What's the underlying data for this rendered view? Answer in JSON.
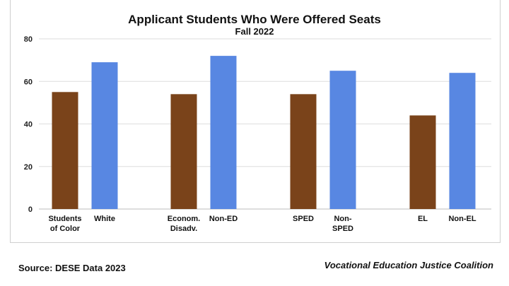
{
  "chart_data": {
    "type": "bar",
    "title": "Applicant Students Who Were Offered Seats",
    "subtitle": "Fall 2022",
    "categories": [
      [
        "Students",
        "of Color"
      ],
      [
        "White"
      ],
      [
        "Econom.",
        "Disadv."
      ],
      [
        "Non-ED"
      ],
      [
        "SPED"
      ],
      [
        "Non-",
        "SPED"
      ],
      [
        "EL"
      ],
      [
        "Non-EL"
      ]
    ],
    "values": [
      55,
      69,
      54,
      72,
      54,
      65,
      44,
      64
    ],
    "bar_colors": [
      "#7a431a",
      "#5887e2",
      "#7a431a",
      "#5887e2",
      "#7a431a",
      "#5887e2",
      "#7a431a",
      "#5887e2"
    ],
    "ylim": [
      0,
      80
    ],
    "yticks": [
      0,
      20,
      40,
      60,
      80
    ],
    "grid": true,
    "legend": "none"
  },
  "footer": {
    "source": "Source: DESE Data 2023",
    "attribution": "Vocational Education Justice Coalition"
  }
}
